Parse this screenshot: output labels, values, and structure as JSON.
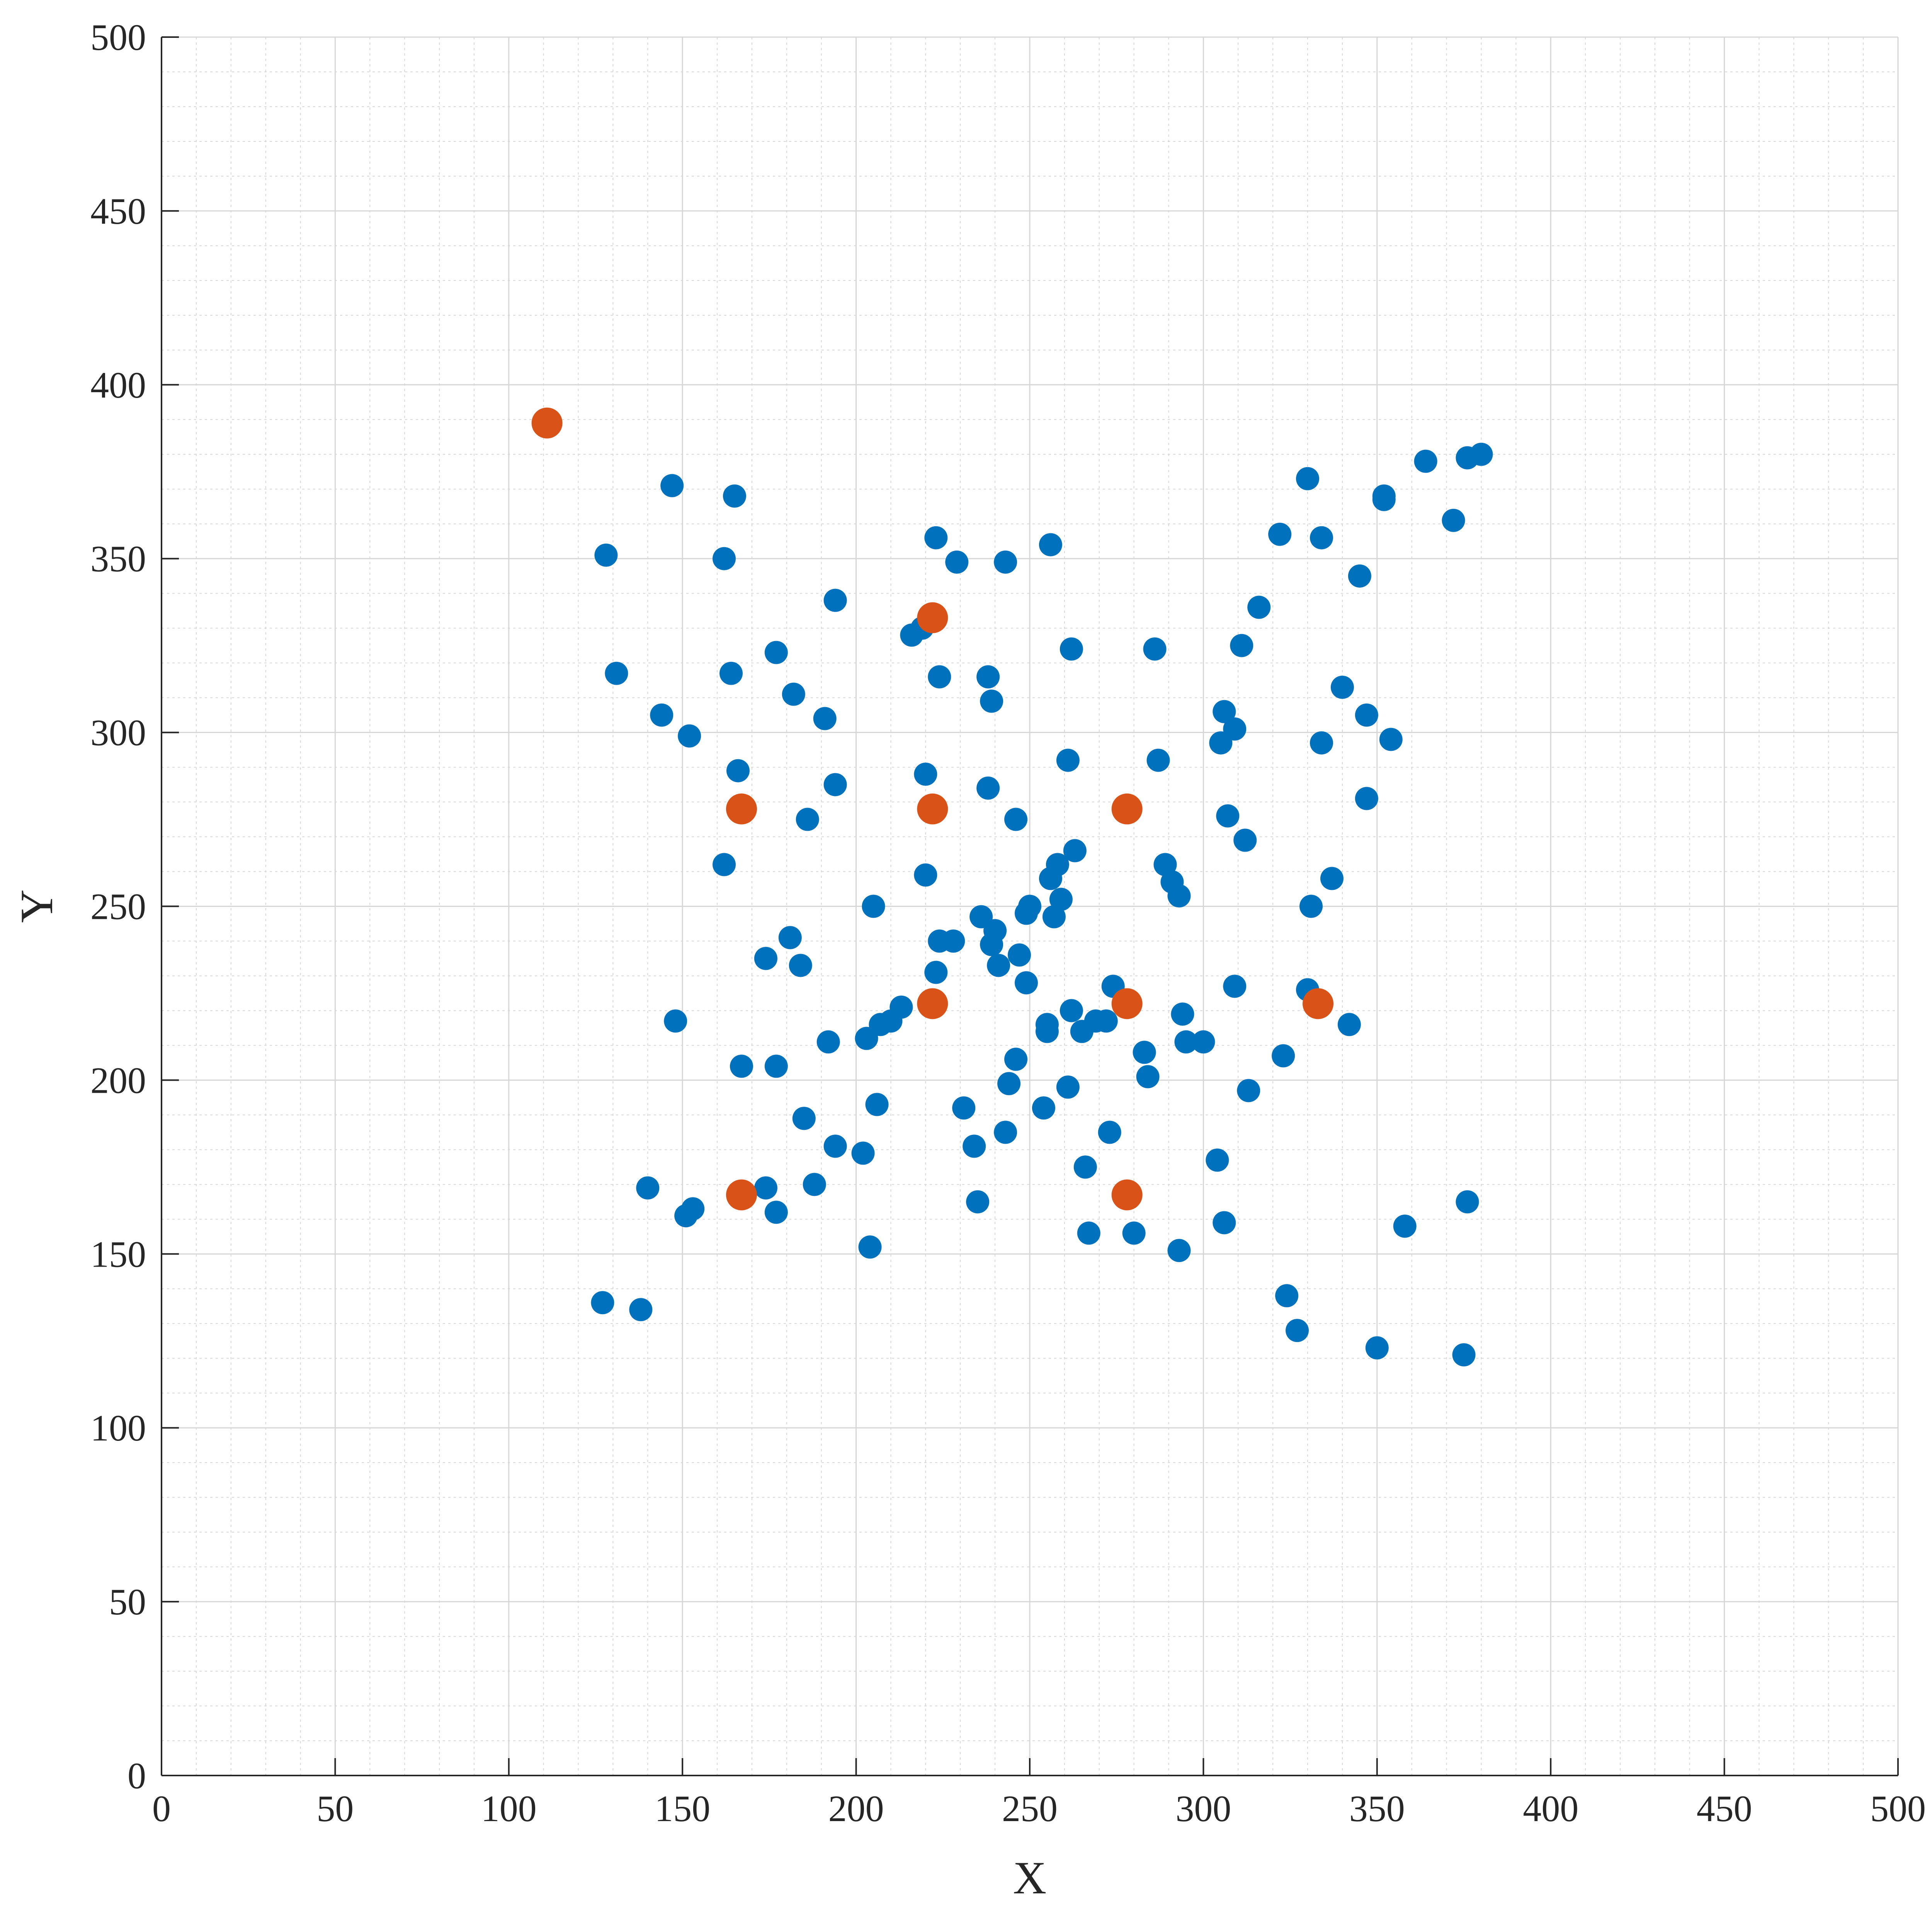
{
  "chart_data": {
    "type": "scatter",
    "title": "",
    "xlabel": "X",
    "ylabel": "Y",
    "xlim": [
      0,
      500
    ],
    "ylim": [
      0,
      500
    ],
    "xticks": [
      0,
      50,
      100,
      150,
      200,
      250,
      300,
      350,
      400,
      450,
      500
    ],
    "yticks": [
      0,
      50,
      100,
      150,
      200,
      250,
      300,
      350,
      400,
      450,
      500
    ],
    "minor_step": 10,
    "grid": true,
    "minor_grid": true,
    "legend": "none",
    "series": [
      {
        "color": "#0072BD",
        "marker": "circle",
        "points": [
          [
            147,
            371
          ],
          [
            165,
            368
          ],
          [
            128,
            351
          ],
          [
            162,
            350
          ],
          [
            194,
            338
          ],
          [
            131,
            317
          ],
          [
            164,
            317
          ],
          [
            177,
            323
          ],
          [
            144,
            305
          ],
          [
            152,
            299
          ],
          [
            182,
            311
          ],
          [
            191,
            304
          ],
          [
            166,
            289
          ],
          [
            194,
            285
          ],
          [
            186,
            275
          ],
          [
            162,
            262
          ],
          [
            216,
            328
          ],
          [
            219,
            330
          ],
          [
            223,
            356
          ],
          [
            229,
            349
          ],
          [
            243,
            349
          ],
          [
            256,
            354
          ],
          [
            224,
            316
          ],
          [
            238,
            316
          ],
          [
            239,
            309
          ],
          [
            220,
            288
          ],
          [
            238,
            284
          ],
          [
            246,
            275
          ],
          [
            261,
            292
          ],
          [
            262,
            324
          ],
          [
            220,
            259
          ],
          [
            263,
            266
          ],
          [
            258,
            262
          ],
          [
            256,
            258
          ],
          [
            259,
            252
          ],
          [
            250,
            250
          ],
          [
            249,
            248
          ],
          [
            257,
            247
          ],
          [
            236,
            247
          ],
          [
            240,
            243
          ],
          [
            224,
            240
          ],
          [
            228,
            240
          ],
          [
            239,
            239
          ],
          [
            241,
            233
          ],
          [
            247,
            236
          ],
          [
            223,
            231
          ],
          [
            249,
            228
          ],
          [
            205,
            250
          ],
          [
            181,
            241
          ],
          [
            174,
            235
          ],
          [
            184,
            233
          ],
          [
            148,
            217
          ],
          [
            167,
            204
          ],
          [
            177,
            204
          ],
          [
            192,
            211
          ],
          [
            203,
            212
          ],
          [
            207,
            216
          ],
          [
            210,
            217
          ],
          [
            213,
            221
          ],
          [
            185,
            189
          ],
          [
            194,
            181
          ],
          [
            202,
            179
          ],
          [
            206,
            193
          ],
          [
            188,
            170
          ],
          [
            174,
            169
          ],
          [
            177,
            162
          ],
          [
            153,
            163
          ],
          [
            151,
            161
          ],
          [
            140,
            169
          ],
          [
            127,
            136
          ],
          [
            138,
            134
          ],
          [
            204,
            152
          ],
          [
            231,
            192
          ],
          [
            244,
            199
          ],
          [
            246,
            206
          ],
          [
            243,
            185
          ],
          [
            234,
            181
          ],
          [
            235,
            165
          ],
          [
            255,
            214
          ],
          [
            255,
            216
          ],
          [
            254,
            192
          ],
          [
            261,
            198
          ],
          [
            262,
            220
          ],
          [
            265,
            214
          ],
          [
            269,
            217
          ],
          [
            272,
            217
          ],
          [
            274,
            227
          ],
          [
            273,
            185
          ],
          [
            266,
            175
          ],
          [
            267,
            156
          ],
          [
            280,
            156
          ],
          [
            283,
            208
          ],
          [
            284,
            201
          ],
          [
            286,
            324
          ],
          [
            287,
            292
          ],
          [
            289,
            262
          ],
          [
            291,
            257
          ],
          [
            293,
            253
          ],
          [
            294,
            219
          ],
          [
            295,
            211
          ],
          [
            300,
            211
          ],
          [
            293,
            151
          ],
          [
            304,
            177
          ],
          [
            306,
            159
          ],
          [
            305,
            297
          ],
          [
            306,
            306
          ],
          [
            309,
            301
          ],
          [
            307,
            276
          ],
          [
            312,
            269
          ],
          [
            311,
            325
          ],
          [
            316,
            336
          ],
          [
            322,
            357
          ],
          [
            330,
            373
          ],
          [
            334,
            356
          ],
          [
            345,
            345
          ],
          [
            340,
            313
          ],
          [
            334,
            297
          ],
          [
            347,
            305
          ],
          [
            354,
            298
          ],
          [
            347,
            281
          ],
          [
            337,
            258
          ],
          [
            331,
            250
          ],
          [
            309,
            227
          ],
          [
            330,
            226
          ],
          [
            342,
            216
          ],
          [
            323,
            207
          ],
          [
            313,
            197
          ],
          [
            324,
            138
          ],
          [
            327,
            128
          ],
          [
            350,
            123
          ],
          [
            358,
            158
          ],
          [
            375,
            121
          ],
          [
            376,
            165
          ],
          [
            364,
            378
          ],
          [
            352,
            368
          ],
          [
            352,
            367
          ],
          [
            376,
            379
          ],
          [
            380,
            380
          ],
          [
            372,
            361
          ]
        ]
      },
      {
        "color": "#D95319",
        "marker": "circle",
        "points": [
          [
            111,
            389
          ],
          [
            222,
            333
          ],
          [
            167,
            278
          ],
          [
            222,
            278
          ],
          [
            278,
            278
          ],
          [
            222,
            222
          ],
          [
            278,
            222
          ],
          [
            333,
            222
          ],
          [
            167,
            167
          ],
          [
            278,
            167
          ]
        ]
      }
    ]
  }
}
